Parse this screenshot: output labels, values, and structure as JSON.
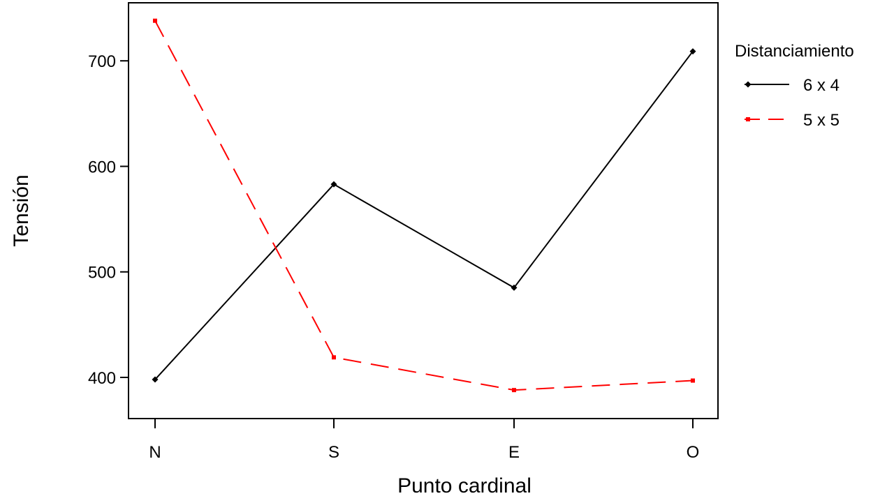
{
  "chart_data": {
    "type": "line",
    "xlabel": "Punto cardinal",
    "ylabel": "Tensión",
    "categories": [
      "N",
      "S",
      "E",
      "O"
    ],
    "y_ticks": [
      400,
      500,
      600,
      700
    ],
    "ylim": [
      361,
      755
    ],
    "grid": false,
    "legend": {
      "title": "Distanciamiento",
      "placement": "right"
    },
    "series": [
      {
        "name": "6 x 4",
        "values": [
          398,
          583,
          485,
          709
        ],
        "color": "#000000",
        "line_style": "solid",
        "marker": "diamond"
      },
      {
        "name": "5 x 5",
        "values": [
          738,
          419,
          388,
          397
        ],
        "color": "#ff0000",
        "line_style": "dashed",
        "marker": "square"
      }
    ]
  }
}
